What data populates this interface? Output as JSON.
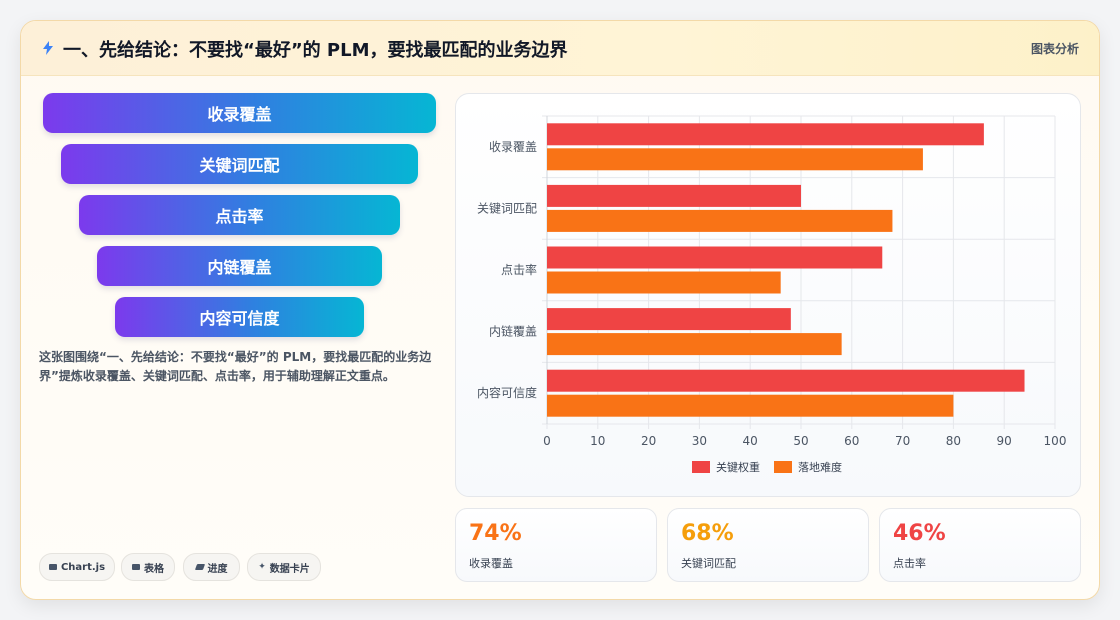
{
  "header": {
    "icon": "lightning-icon",
    "title": "一、先给结论：不要找“最好”的 PLM，要找最匹配的业务边界",
    "tag": "图表分析"
  },
  "funnel": {
    "items": [
      "收录覆盖",
      "关键词匹配",
      "点击率",
      "内链覆盖",
      "内容可信度"
    ]
  },
  "description": "这张图围绕“一、先给结论：不要找“最好”的 PLM，要找最匹配的业务边界”提炼收录覆盖、关键词匹配、点击率，用于辅助理解正文重点。",
  "chips": [
    {
      "label": "Chart.js",
      "icon": "chart-icon"
    },
    {
      "label": "表格",
      "icon": "table-icon"
    },
    {
      "label": "进度",
      "icon": "progress-icon"
    },
    {
      "label": "数据卡片",
      "icon": "sparkle-icon"
    }
  ],
  "chart_data": {
    "type": "bar",
    "orientation": "horizontal",
    "categories": [
      "收录覆盖",
      "关键词匹配",
      "点击率",
      "内链覆盖",
      "内容可信度"
    ],
    "series": [
      {
        "name": "关键权重",
        "color": "#ef4444",
        "values": [
          86,
          50,
          66,
          48,
          94
        ]
      },
      {
        "name": "落地难度",
        "color": "#f97316",
        "values": [
          74,
          68,
          46,
          58,
          80
        ]
      }
    ],
    "xlim": [
      0,
      100
    ],
    "xticks": [
      "0",
      "10",
      "20",
      "30",
      "40",
      "50",
      "60",
      "70",
      "80",
      "90",
      "100"
    ],
    "grid": true,
    "legend": "bottom"
  },
  "stats": [
    {
      "value": "74%",
      "label": "收录覆盖",
      "color": "#f97316"
    },
    {
      "value": "68%",
      "label": "关键词匹配",
      "color": "#f59e0b"
    },
    {
      "value": "46%",
      "label": "点击率",
      "color": "#ef4444"
    }
  ]
}
